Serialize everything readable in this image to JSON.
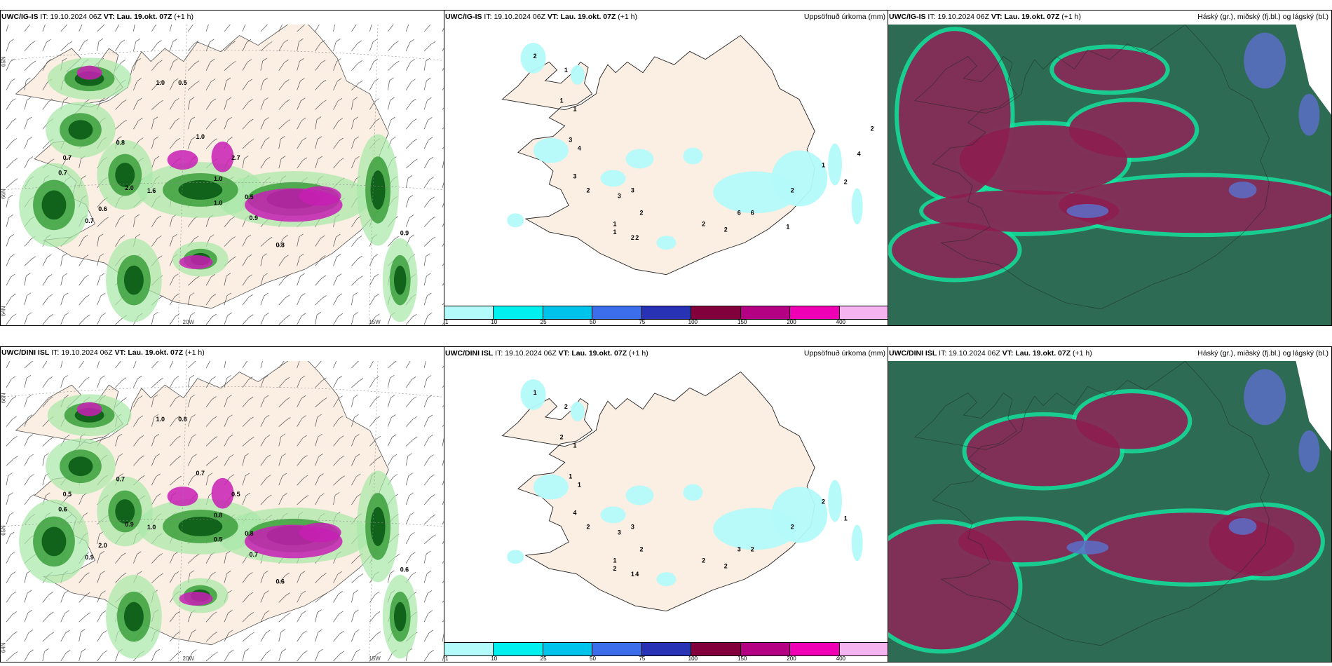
{
  "panels": [
    {
      "id": "igis-precip",
      "model": "UWC/IG-IS",
      "it_label": "IT:",
      "it_value": "19.10.2024 06Z",
      "vt_label": "VT:",
      "vt_value": "Lau. 19.okt. 07Z",
      "lead": "(+1 h)",
      "right_title": "",
      "axis_labels": [
        "20W",
        "15W",
        "65N",
        "66N",
        "64N"
      ],
      "values": [
        "1.0",
        "0.5",
        "0.7",
        "0.8",
        "0.7",
        "0.6",
        "2.0",
        "1.6",
        "1.0",
        "0.9",
        "0.8",
        "0.5",
        "0.7",
        "1.0",
        "2.7",
        "1.0",
        "0.9"
      ]
    },
    {
      "id": "igis-accum",
      "model": "UWC/IG-IS",
      "it_label": "IT:",
      "it_value": "19.10.2024 06Z",
      "vt_label": "VT:",
      "vt_value": "Lau. 19.okt. 07Z",
      "lead": "(+1 h)",
      "right_title": "Uppsöfnuð úrkoma (mm)",
      "legend_labels": [
        "1",
        "10",
        "25",
        "50",
        "75",
        "100",
        "150",
        "200",
        "400"
      ],
      "values": [
        "2",
        "1",
        "1",
        "1",
        "3",
        "4",
        "3",
        "2",
        "3",
        "3",
        "2",
        "1",
        "1",
        "2",
        "2",
        "6",
        "6",
        "2",
        "2",
        "2",
        "1",
        "2",
        "2",
        "4",
        "1"
      ]
    },
    {
      "id": "igis-clouds",
      "model": "UWC/IG-IS",
      "it_label": "IT:",
      "it_value": "19.10.2024 06Z",
      "vt_label": "VT:",
      "vt_value": "Lau. 19.okt. 07Z",
      "lead": "(+1 h)",
      "right_title": "Háský (gr.), miðský (fj.bl.) og lágský (bl.)"
    },
    {
      "id": "dini-precip",
      "model": "UWC/DINI ISL",
      "it_label": "IT:",
      "it_value": "19.10.2024 06Z",
      "vt_label": "VT:",
      "vt_value": "Lau. 19.okt. 07Z",
      "lead": "(+1 h)",
      "right_title": "",
      "axis_labels": [
        "20W",
        "15W",
        "66N",
        "65N",
        "64N"
      ],
      "values": [
        "1.0",
        "0.8",
        "0.5",
        "0.7",
        "0.6",
        "2.0",
        "0.9",
        "1.0",
        "0.5",
        "0.7",
        "0.6",
        "0.8",
        "0.9",
        "0.7",
        "0.5",
        "0.8",
        "0.6"
      ]
    },
    {
      "id": "dini-accum",
      "model": "UWC/DINI ISL",
      "it_label": "IT:",
      "it_value": "19.10.2024 06Z",
      "vt_label": "VT:",
      "vt_value": "Lau. 19.okt. 07Z",
      "lead": "(+1 h)",
      "right_title": "Uppsöfnuð úrkoma (mm)",
      "legend_labels": [
        "1",
        "10",
        "25",
        "50",
        "75",
        "100",
        "150",
        "200",
        "400"
      ],
      "values": [
        "1",
        "2",
        "2",
        "1",
        "1",
        "1",
        "4",
        "2",
        "3",
        "3",
        "2",
        "1",
        "2",
        "1",
        "4",
        "3",
        "2",
        "2",
        "2",
        "2",
        "2",
        "1"
      ]
    },
    {
      "id": "dini-clouds",
      "model": "UWC/DINI ISL",
      "it_label": "IT:",
      "it_value": "19.10.2024 06Z",
      "vt_label": "VT:",
      "vt_value": "Lau. 19.okt. 07Z",
      "lead": "(+1 h)",
      "right_title": "Háský (gr.), miðský (fj.bl.) og lágský (bl.)"
    }
  ],
  "legend_colors": [
    "#b3fafa",
    "#00f0f0",
    "#00c3eb",
    "#3c6eeb",
    "#2832b4",
    "#82003c",
    "#b40082",
    "#f000b4",
    "#f5b4f0"
  ],
  "colors": {
    "land": "#fbeee2",
    "precip_light": "#a8e8a8",
    "precip_mid": "#3ca03c",
    "precip_dark": "#0a5a14",
    "precip_heavy": "#c81eb4",
    "accum_light": "#b3fafa",
    "cloud_high": "#2e6b55",
    "cloud_mid": "#8c1e50",
    "cloud_low": "#5a6ec8",
    "cloud_edge": "#14e6a0"
  }
}
